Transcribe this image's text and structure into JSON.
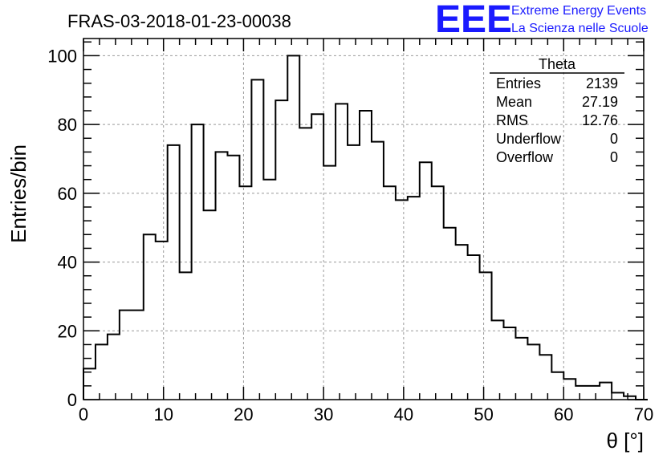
{
  "chart_data": {
    "type": "bar",
    "style": "step-histogram",
    "title": "FRAS-03-2018-01-23-00038",
    "xlabel": "θ [°]",
    "ylabel": "Entries/bin",
    "xlim": [
      0,
      70
    ],
    "ylim": [
      0,
      105
    ],
    "grid": true,
    "bin_width": 1.5,
    "x_ticks": [
      0,
      10,
      20,
      30,
      40,
      50,
      60,
      70
    ],
    "y_ticks": [
      0,
      20,
      40,
      60,
      80,
      100
    ],
    "values": [
      9,
      16,
      19,
      26,
      26,
      48,
      46,
      74,
      37,
      80,
      55,
      72,
      71,
      62,
      93,
      64,
      87,
      100,
      79,
      83,
      68,
      86,
      74,
      84,
      75,
      62,
      58,
      59,
      69,
      62,
      50,
      45,
      42,
      37,
      23,
      21,
      18,
      16,
      13,
      8,
      6,
      4,
      4,
      5,
      2,
      1,
      0
    ],
    "stats_box": {
      "title": "Theta",
      "rows": [
        {
          "label": "Entries",
          "value": "2139"
        },
        {
          "label": "Mean",
          "value": "27.19"
        },
        {
          "label": "RMS",
          "value": "12.76"
        },
        {
          "label": "Underflow",
          "value": "0"
        },
        {
          "label": "Overflow",
          "value": "0"
        }
      ]
    }
  },
  "logo": {
    "mark": "EEE",
    "line1": "Extreme Energy Events",
    "line2": "La Scienza nelle Scuole",
    "color": "#1a1aff"
  }
}
